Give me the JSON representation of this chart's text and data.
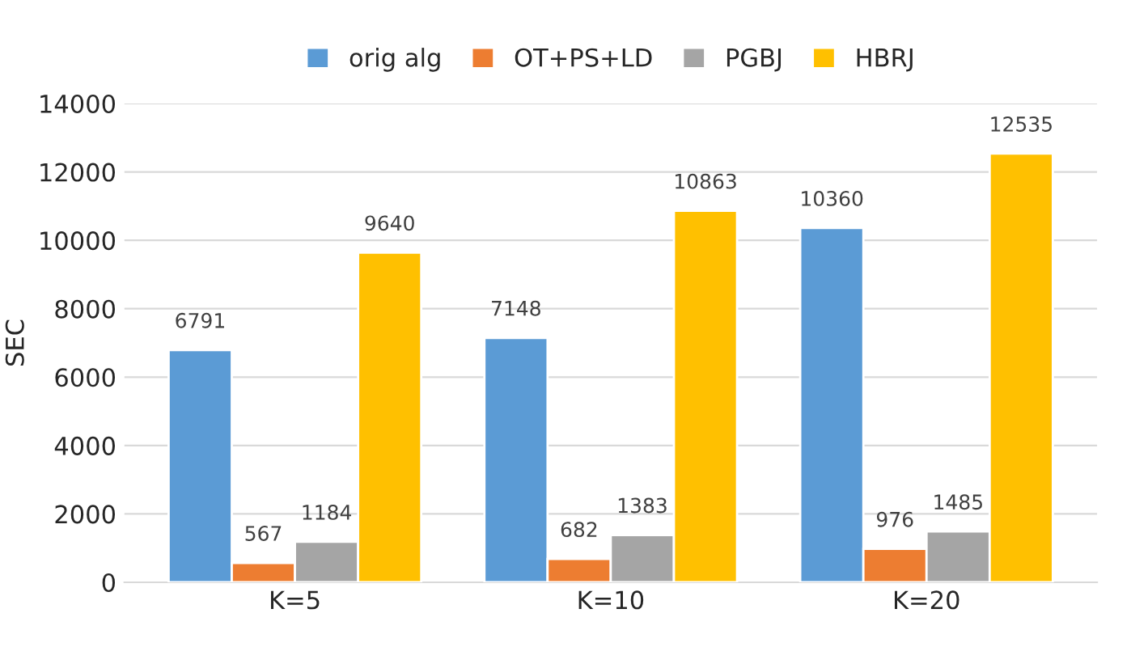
{
  "chart_data": {
    "type": "bar",
    "ylabel": "SEC",
    "categories": [
      "K=5",
      "K=10",
      "K=20"
    ],
    "series": [
      {
        "name": "orig alg",
        "color": "#5b9bd5",
        "values": [
          6791,
          7148,
          10360
        ]
      },
      {
        "name": "OT+PS+LD",
        "color": "#ed7d31",
        "values": [
          567,
          682,
          976
        ]
      },
      {
        "name": "PGBJ",
        "color": "#a5a5a5",
        "values": [
          1184,
          1383,
          1485
        ]
      },
      {
        "name": "HBRJ",
        "color": "#ffc000",
        "values": [
          9640,
          10863,
          12535
        ]
      }
    ],
    "ylim": [
      0,
      14000
    ],
    "yticks": [
      0,
      2000,
      4000,
      6000,
      8000,
      10000,
      12000,
      14000
    ],
    "grid": "y",
    "legend": "top",
    "data_labels": true
  }
}
